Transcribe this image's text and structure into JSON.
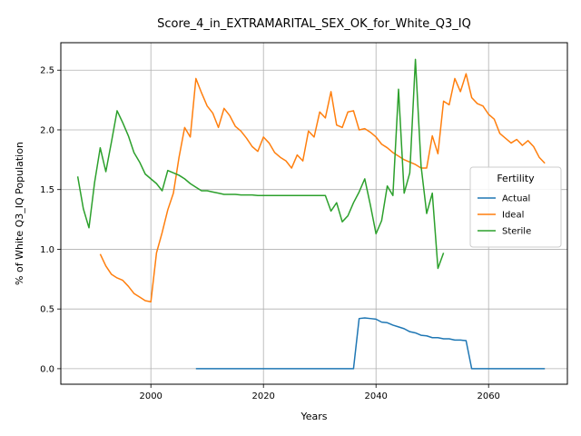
{
  "chart_data": {
    "type": "line",
    "title": "Score_4_in_EXTRAMARITAL_SEX_OK_for_White_Q3_IQ",
    "xlabel": "Years",
    "ylabel": "% of White Q3_IQ Population",
    "xlim": [
      1984,
      2074
    ],
    "ylim": [
      -0.13,
      2.73
    ],
    "xticks": [
      2000,
      2020,
      2040,
      2060
    ],
    "yticks": [
      0.0,
      0.5,
      1.0,
      1.5,
      2.0,
      2.5
    ],
    "grid": true,
    "legend": {
      "title": "Fertility",
      "placement": "center-right"
    },
    "series": [
      {
        "name": "Actual",
        "color": "#1f77b4",
        "points": [
          [
            2008,
            0.0
          ],
          [
            2010,
            0.0
          ],
          [
            2015,
            0.0
          ],
          [
            2020,
            0.0
          ],
          [
            2025,
            0.0
          ],
          [
            2030,
            0.0
          ],
          [
            2035,
            0.0
          ],
          [
            2036,
            0.0
          ],
          [
            2037,
            0.42
          ],
          [
            2038,
            0.425
          ],
          [
            2039,
            0.42
          ],
          [
            2040,
            0.415
          ],
          [
            2041,
            0.39
          ],
          [
            2042,
            0.385
          ],
          [
            2043,
            0.365
          ],
          [
            2044,
            0.35
          ],
          [
            2045,
            0.335
          ],
          [
            2046,
            0.31
          ],
          [
            2047,
            0.3
          ],
          [
            2048,
            0.28
          ],
          [
            2049,
            0.275
          ],
          [
            2050,
            0.26
          ],
          [
            2051,
            0.26
          ],
          [
            2052,
            0.25
          ],
          [
            2053,
            0.25
          ],
          [
            2054,
            0.24
          ],
          [
            2055,
            0.24
          ],
          [
            2056,
            0.235
          ],
          [
            2057,
            0.0
          ],
          [
            2060,
            0.0
          ],
          [
            2065,
            0.0
          ],
          [
            2070,
            0.0
          ]
        ]
      },
      {
        "name": "Ideal",
        "color": "#ff7f0e",
        "segments": [
          [
            [
              1991,
              0.96
            ],
            [
              1992,
              0.86
            ],
            [
              1993,
              0.79
            ],
            [
              1994,
              0.76
            ],
            [
              1995,
              0.74
            ],
            [
              1996,
              0.69
            ],
            [
              1997,
              0.63
            ],
            [
              1998,
              0.6
            ],
            [
              1999,
              0.57
            ],
            [
              2000,
              0.56
            ],
            [
              2001,
              0.97
            ],
            [
              2002,
              1.14
            ],
            [
              2003,
              1.33
            ],
            [
              2004,
              1.47
            ],
            [
              2005,
              1.77
            ],
            [
              2006,
              2.02
            ],
            [
              2007,
              1.94
            ],
            [
              2008,
              2.43
            ],
            [
              2009,
              2.31
            ],
            [
              2010,
              2.2
            ],
            [
              2011,
              2.14
            ],
            [
              2012,
              2.02
            ],
            [
              2013,
              2.18
            ],
            [
              2014,
              2.12
            ],
            [
              2015,
              2.03
            ],
            [
              2016,
              1.99
            ],
            [
              2017,
              1.93
            ],
            [
              2018,
              1.86
            ],
            [
              2019,
              1.82
            ],
            [
              2020,
              1.94
            ],
            [
              2021,
              1.89
            ],
            [
              2022,
              1.81
            ],
            [
              2023,
              1.77
            ],
            [
              2024,
              1.74
            ],
            [
              2025,
              1.68
            ],
            [
              2026,
              1.79
            ],
            [
              2027,
              1.74
            ],
            [
              2028,
              1.99
            ],
            [
              2029,
              1.94
            ],
            [
              2030,
              2.15
            ],
            [
              2031,
              2.1
            ],
            [
              2032,
              2.32
            ],
            [
              2033,
              2.04
            ],
            [
              2034,
              2.02
            ],
            [
              2035,
              2.15
            ],
            [
              2036,
              2.16
            ],
            [
              2037,
              2.0
            ],
            [
              2038,
              2.01
            ],
            [
              2039,
              1.98
            ],
            [
              2040,
              1.94
            ],
            [
              2041,
              1.88
            ],
            [
              2042,
              1.85
            ],
            [
              2043,
              1.81
            ],
            [
              2044,
              1.78
            ],
            [
              2045,
              1.75
            ],
            [
              2046,
              1.73
            ],
            [
              2047,
              1.71
            ],
            [
              2048,
              1.68
            ],
            [
              2049,
              1.68
            ],
            [
              2050,
              1.95
            ],
            [
              2051,
              1.8
            ],
            [
              2052,
              2.24
            ],
            [
              2053,
              2.21
            ],
            [
              2054,
              2.43
            ],
            [
              2055,
              2.32
            ],
            [
              2056,
              2.47
            ],
            [
              2057,
              2.27
            ],
            [
              2058,
              2.22
            ],
            [
              2059,
              2.2
            ],
            [
              2060,
              2.13
            ],
            [
              2061,
              2.09
            ],
            [
              2062,
              1.97
            ],
            [
              2063,
              1.93
            ],
            [
              2064,
              1.89
            ],
            [
              2065,
              1.92
            ],
            [
              2066,
              1.87
            ],
            [
              2067,
              1.91
            ],
            [
              2068,
              1.86
            ],
            [
              2069,
              1.77
            ],
            [
              2070,
              1.72
            ]
          ]
        ]
      },
      {
        "name": "Sterile",
        "color": "#2ca02c",
        "points": [
          [
            1987,
            1.61
          ],
          [
            1988,
            1.34
          ],
          [
            1989,
            1.18
          ],
          [
            1990,
            1.56
          ],
          [
            1991,
            1.85
          ],
          [
            1992,
            1.65
          ],
          [
            1993,
            1.9
          ],
          [
            1994,
            2.16
          ],
          [
            1995,
            2.06
          ],
          [
            1996,
            1.95
          ],
          [
            1997,
            1.81
          ],
          [
            1998,
            1.73
          ],
          [
            1999,
            1.63
          ],
          [
            2000,
            1.59
          ],
          [
            2001,
            1.55
          ],
          [
            2002,
            1.49
          ],
          [
            2003,
            1.66
          ],
          [
            2004,
            1.64
          ],
          [
            2005,
            1.62
          ],
          [
            2006,
            1.59
          ],
          [
            2007,
            1.55
          ],
          [
            2008,
            1.52
          ],
          [
            2009,
            1.49
          ],
          [
            2010,
            1.49
          ],
          [
            2011,
            1.48
          ],
          [
            2012,
            1.47
          ],
          [
            2013,
            1.46
          ],
          [
            2014,
            1.46
          ],
          [
            2015,
            1.46
          ],
          [
            2016,
            1.455
          ],
          [
            2017,
            1.455
          ],
          [
            2018,
            1.455
          ],
          [
            2019,
            1.45
          ],
          [
            2020,
            1.45
          ],
          [
            2025,
            1.45
          ],
          [
            2030,
            1.45
          ],
          [
            2031,
            1.45
          ],
          [
            2032,
            1.32
          ],
          [
            2033,
            1.39
          ],
          [
            2034,
            1.23
          ],
          [
            2035,
            1.28
          ],
          [
            2036,
            1.39
          ],
          [
            2037,
            1.48
          ],
          [
            2038,
            1.59
          ],
          [
            2039,
            1.37
          ],
          [
            2040,
            1.13
          ],
          [
            2041,
            1.24
          ],
          [
            2042,
            1.53
          ],
          [
            2043,
            1.45
          ],
          [
            2044,
            2.34
          ],
          [
            2045,
            1.47
          ],
          [
            2046,
            1.64
          ],
          [
            2047,
            2.59
          ],
          [
            2048,
            1.7
          ],
          [
            2049,
            1.3
          ],
          [
            2050,
            1.47
          ],
          [
            2051,
            0.84
          ],
          [
            2052,
            0.97
          ]
        ]
      }
    ]
  }
}
